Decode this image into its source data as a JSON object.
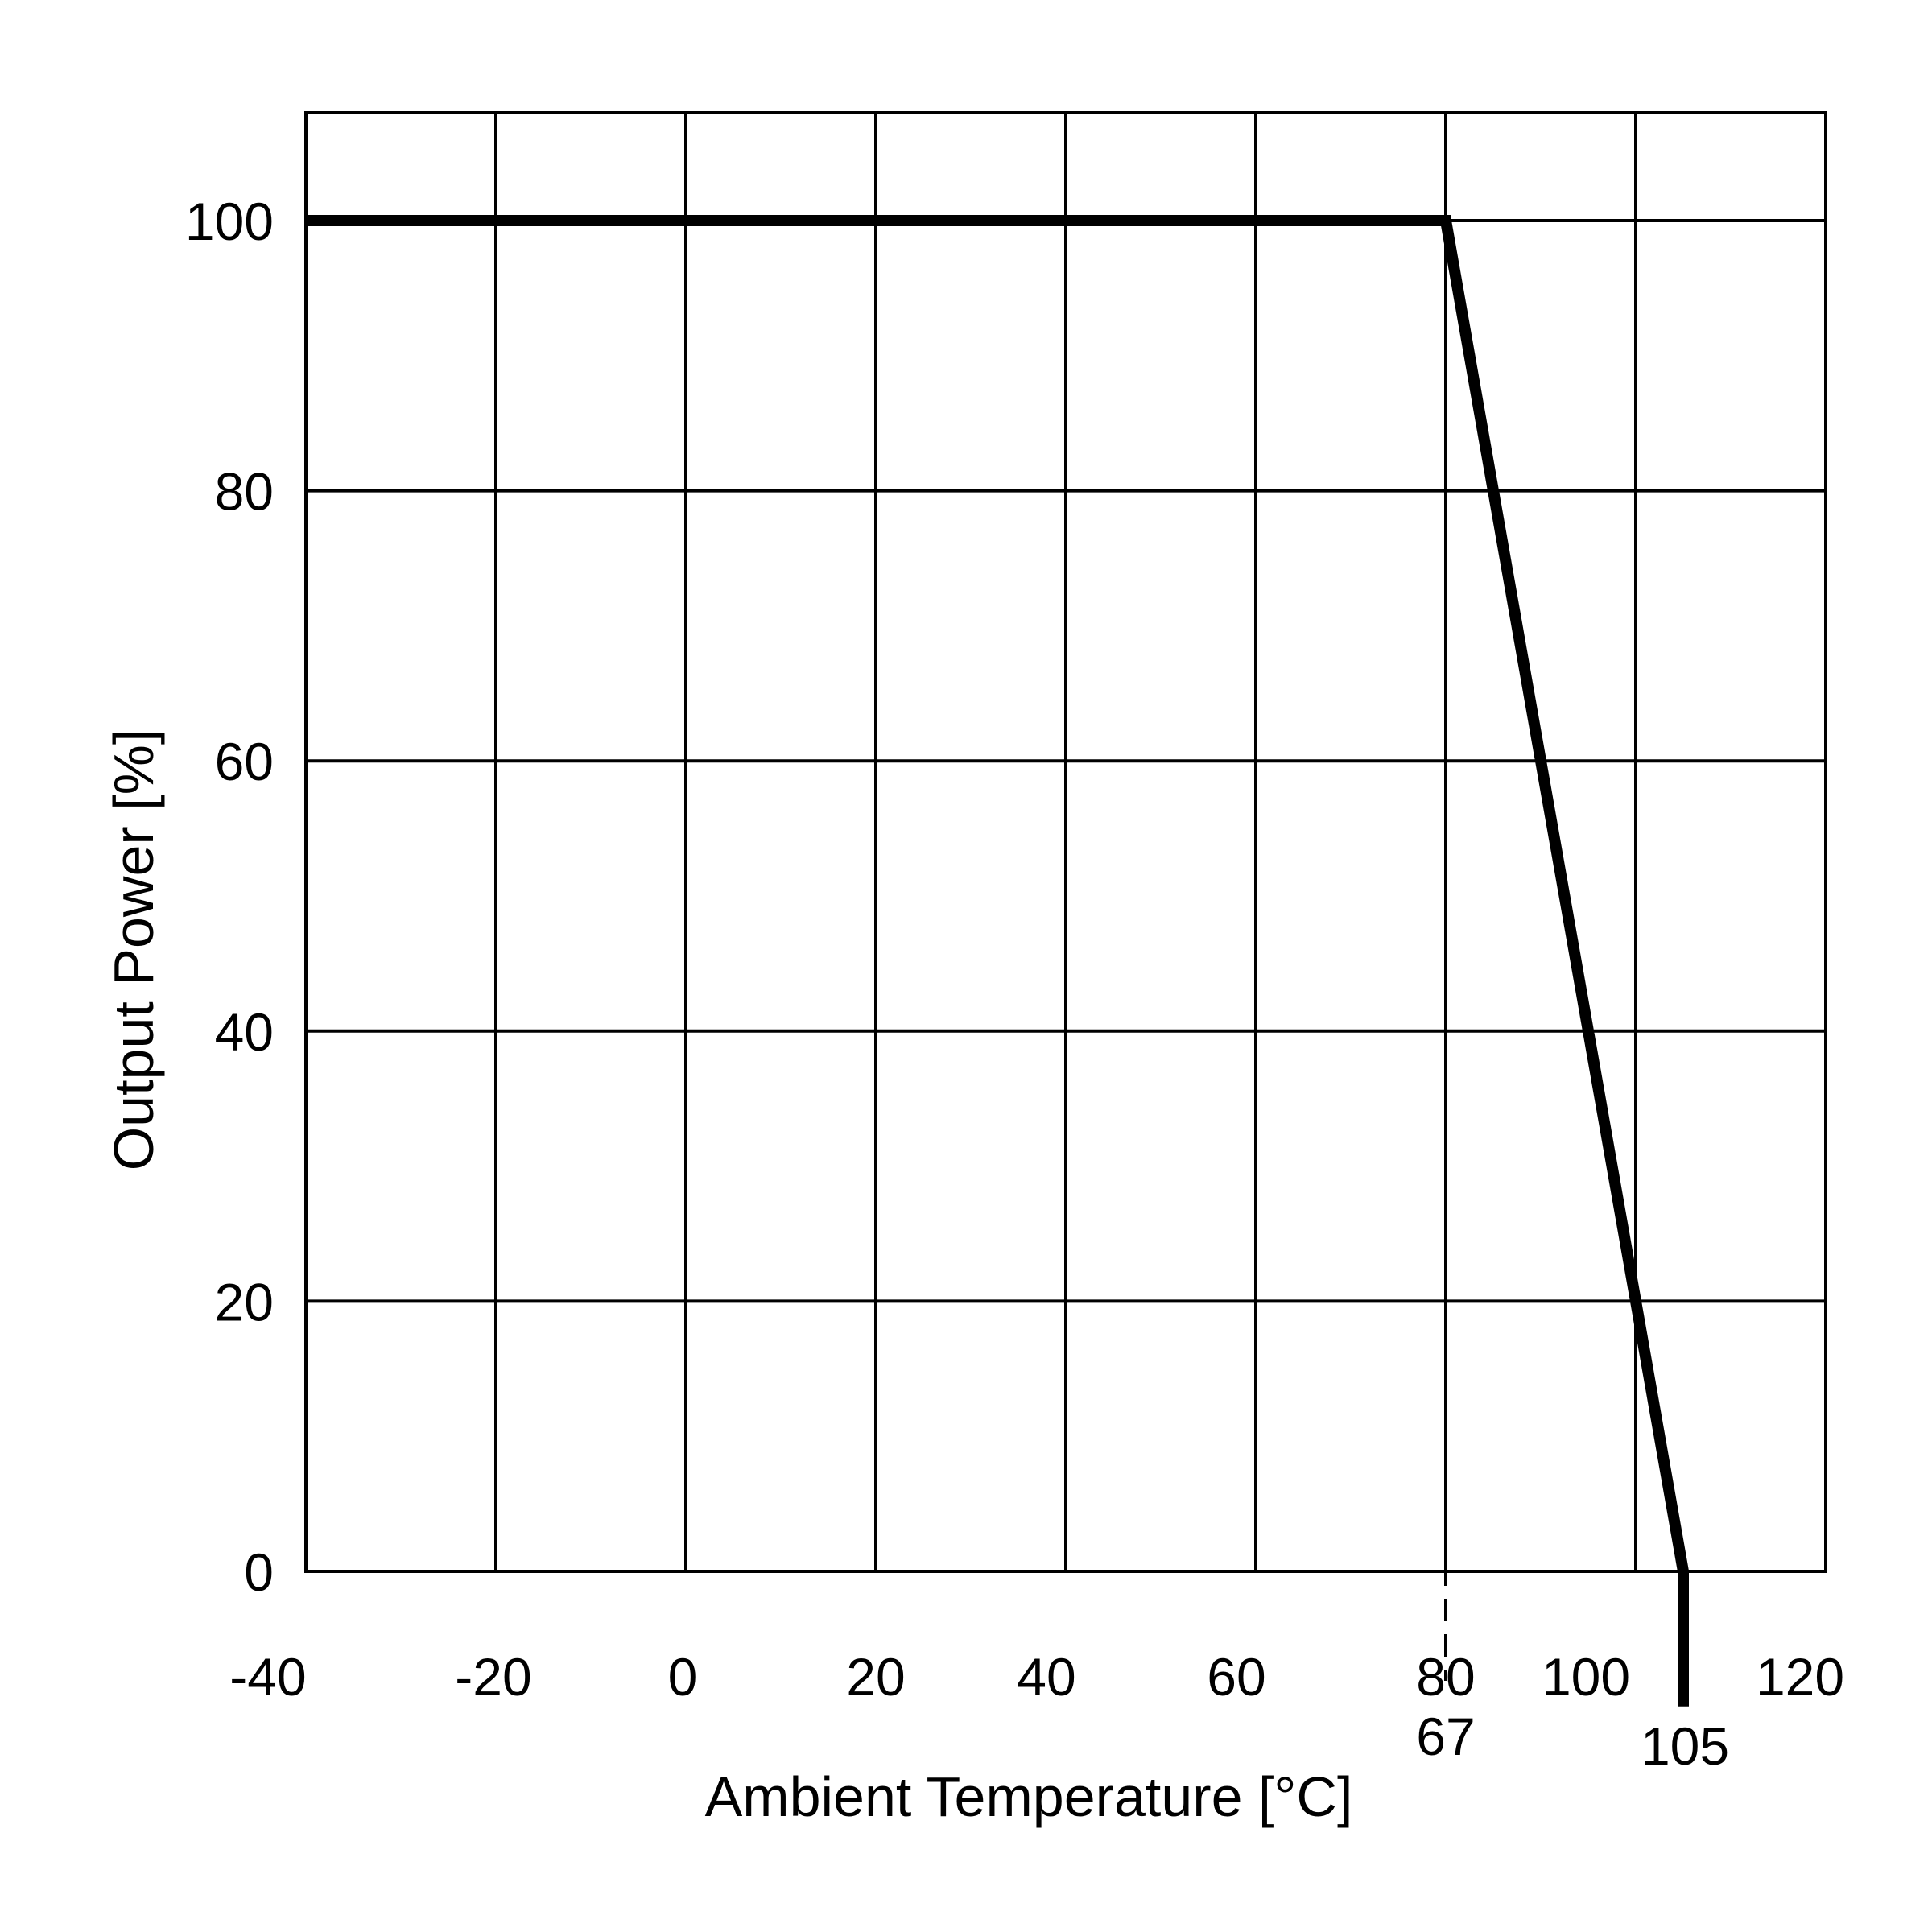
{
  "chart_data": {
    "type": "line",
    "xlabel": "Ambient Temperature [°C]",
    "ylabel": "Output Power [%]",
    "x_tick_labels": [
      "-40",
      "-20",
      "0",
      "20",
      "40",
      "60",
      "80",
      "100",
      "120"
    ],
    "y_ticks": [
      0,
      20,
      40,
      60,
      80,
      100
    ],
    "series": [
      {
        "x": [
          -40,
          67,
          105,
          105
        ],
        "y": [
          100,
          100,
          0,
          -10
        ]
      }
    ],
    "annotations": [
      {
        "x": 67,
        "label": "67",
        "style": "dashed"
      },
      {
        "x": 105,
        "label": "105"
      }
    ],
    "grid": true,
    "colors": {
      "line": "#000000",
      "grid": "#000000",
      "background": "#ffffff"
    }
  }
}
